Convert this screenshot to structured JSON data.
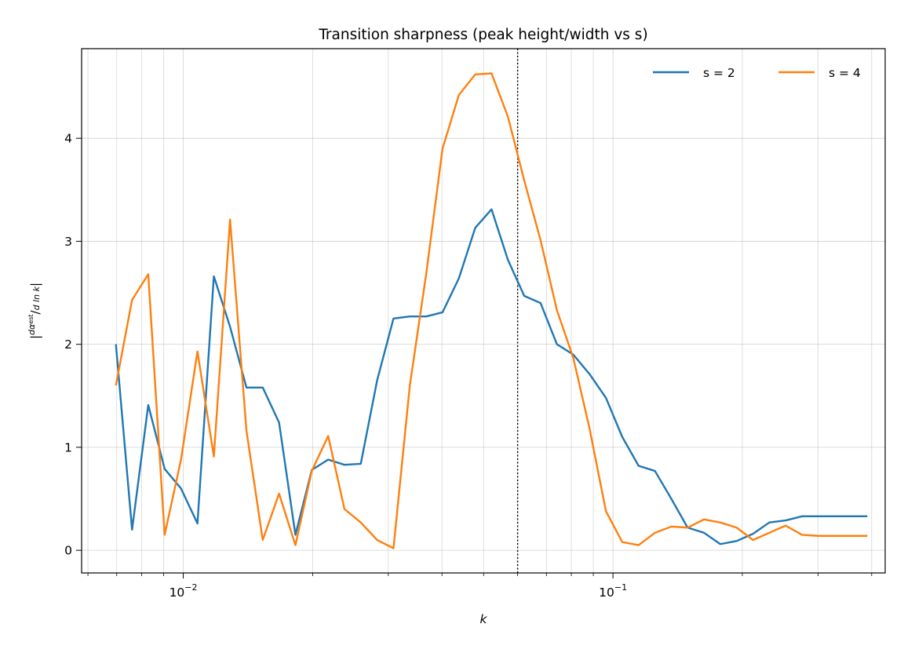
{
  "chart_data": {
    "type": "line",
    "title": "Transition sharpness (peak height/width vs s)",
    "xlabel": "k",
    "ylabel": "|dα_est / d ln k|",
    "xscale": "log",
    "xlim": [
      0.0058,
      0.43
    ],
    "ylim": [
      -0.22,
      4.87
    ],
    "x_ticks": [
      {
        "value": 0.01,
        "base": "10",
        "exp": "−2"
      },
      {
        "value": 0.1,
        "base": "10",
        "exp": "−1"
      }
    ],
    "y_ticks": [
      0,
      1,
      2,
      3,
      4
    ],
    "grid": true,
    "legend_position": "top-right",
    "vline": {
      "x": 0.06,
      "style": "dotted"
    },
    "series": [
      {
        "name": "s = 2",
        "color": "#1f77b4",
        "x": [
          0.00697,
          0.0076,
          0.00829,
          0.00905,
          0.00988,
          0.01079,
          0.01178,
          0.01285,
          0.01403,
          0.01531,
          0.01671,
          0.01824,
          0.01991,
          0.02174,
          0.02372,
          0.02589,
          0.02826,
          0.03085,
          0.03367,
          0.03675,
          0.04012,
          0.04379,
          0.0478,
          0.05217,
          0.05695,
          0.06216,
          0.06785,
          0.07406,
          0.08083,
          0.08823,
          0.0963,
          0.10511,
          0.11473,
          0.12523,
          0.13669,
          0.1492,
          0.16285,
          0.17775,
          0.19401,
          0.21177,
          0.23115,
          0.2523,
          0.27538,
          0.30058,
          0.32809,
          0.35811,
          0.39088
        ],
        "y": [
          2.0,
          0.2,
          1.41,
          0.79,
          0.6,
          0.26,
          2.66,
          2.17,
          1.58,
          1.58,
          1.24,
          0.15,
          0.78,
          0.88,
          0.83,
          0.84,
          1.65,
          2.25,
          2.27,
          2.27,
          2.31,
          2.64,
          3.13,
          3.31,
          2.82,
          2.47,
          2.4,
          2.0,
          1.9,
          1.71,
          1.48,
          1.1,
          0.82,
          0.77,
          0.5,
          0.22,
          0.17,
          0.06,
          0.09,
          0.16,
          0.27,
          0.29,
          0.33,
          0.33,
          0.33,
          0.33,
          0.33
        ]
      },
      {
        "name": "s = 4",
        "color": "#ff7f0e",
        "x": [
          0.00697,
          0.0076,
          0.00829,
          0.00905,
          0.00988,
          0.01079,
          0.01178,
          0.01285,
          0.01403,
          0.01531,
          0.01671,
          0.01824,
          0.01991,
          0.02174,
          0.02372,
          0.02589,
          0.02826,
          0.03085,
          0.03367,
          0.03675,
          0.04012,
          0.04379,
          0.0478,
          0.05217,
          0.05695,
          0.06216,
          0.06785,
          0.07406,
          0.08083,
          0.08823,
          0.0963,
          0.10511,
          0.11473,
          0.12523,
          0.13669,
          0.1492,
          0.16285,
          0.17775,
          0.19401,
          0.21177,
          0.23115,
          0.2523,
          0.27538,
          0.30058,
          0.32809,
          0.35811,
          0.39088
        ],
        "y": [
          1.6,
          2.43,
          2.68,
          0.15,
          0.88,
          1.93,
          0.91,
          3.21,
          1.16,
          0.1,
          0.55,
          0.05,
          0.77,
          1.11,
          0.4,
          0.27,
          0.1,
          0.02,
          1.6,
          2.68,
          3.9,
          4.42,
          4.62,
          4.63,
          4.21,
          3.59,
          3.01,
          2.33,
          1.87,
          1.18,
          0.38,
          0.08,
          0.05,
          0.17,
          0.23,
          0.22,
          0.3,
          0.27,
          0.22,
          0.1,
          0.17,
          0.24,
          0.15,
          0.14,
          0.14,
          0.14,
          0.14
        ]
      }
    ]
  }
}
